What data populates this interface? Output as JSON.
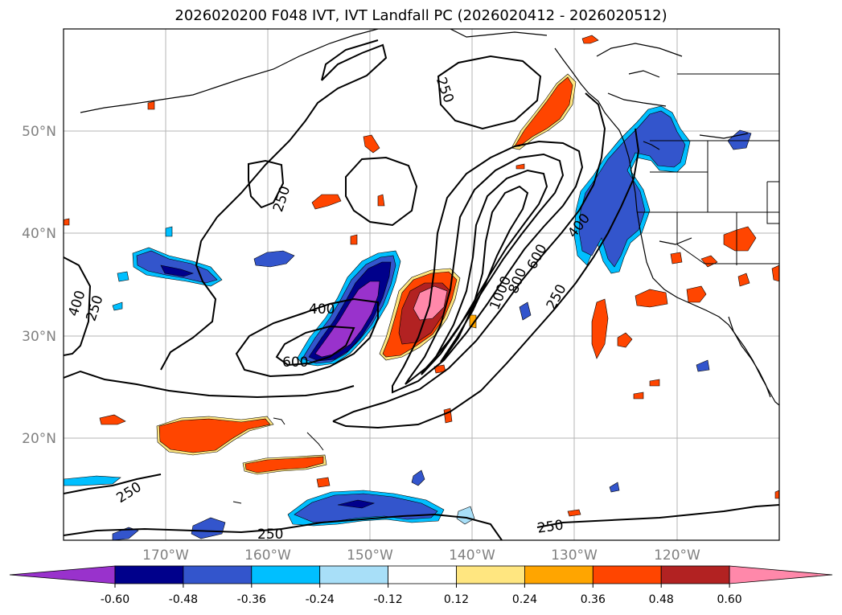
{
  "title": "2026020200 F048 IVT, IVT Landfall PC (2026020412 - 2026020512)",
  "map": {
    "lon_labels": [
      "170°W",
      "160°W",
      "150°W",
      "140°W",
      "130°W",
      "120°W"
    ],
    "lat_labels": [
      "50°N",
      "40°N",
      "30°N",
      "20°N"
    ],
    "lon_range": [
      -180,
      -110
    ],
    "lat_range": [
      10,
      60
    ],
    "gridlines": true
  },
  "contours": {
    "color": "#000000",
    "labels": [
      "250",
      "250",
      "400",
      "250",
      "400",
      "600",
      "1000",
      "800",
      "600",
      "400",
      "250",
      "250",
      "250",
      "250"
    ]
  },
  "colorbar": {
    "ticks": [
      "-0.60",
      "-0.48",
      "-0.36",
      "-0.24",
      "-0.12",
      "0.12",
      "0.24",
      "0.36",
      "0.48",
      "0.60"
    ],
    "colors": [
      "#9932cc",
      "#00008b",
      "#3355cc",
      "#00bfff",
      "#a8dff8",
      "#ffffff",
      "#ffe680",
      "#ffa500",
      "#ff4500",
      "#b22222",
      "#ff88aa"
    ]
  }
}
